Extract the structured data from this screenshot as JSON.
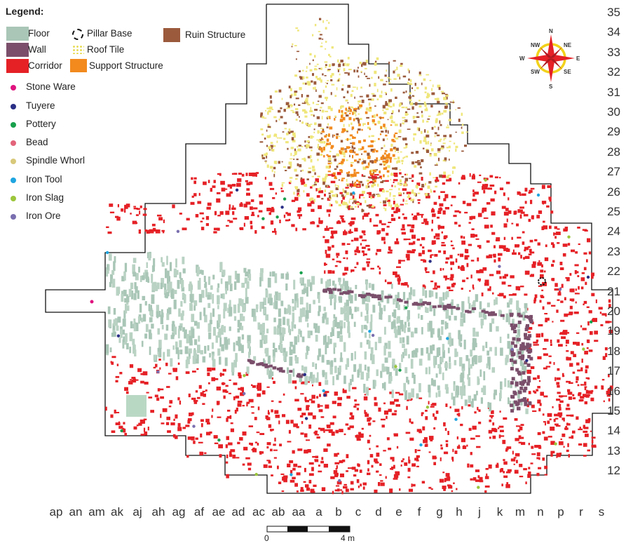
{
  "legend": {
    "title": "Legend:",
    "items": [
      {
        "label": "Floor",
        "color": "#a9c6b6"
      },
      {
        "label": "Wall",
        "color": "#7b4f6b"
      },
      {
        "label": "Corridor",
        "color": "#e52126"
      },
      {
        "label": "Pillar Base",
        "color": "#111111"
      },
      {
        "label": "Roof Tile",
        "color": "#efe67a"
      },
      {
        "label": "Support Structure",
        "color": "#f28a1e"
      },
      {
        "label": "Ruin Structure",
        "color": "#9b5a3c"
      },
      {
        "label": "Stone Ware",
        "color": "#e0137f"
      },
      {
        "label": "Tuyere",
        "color": "#2a2f86"
      },
      {
        "label": "Pottery",
        "color": "#17a04c"
      },
      {
        "label": "Bead",
        "color": "#e2647a"
      },
      {
        "label": "Spindle Whorl",
        "color": "#d8c97a"
      },
      {
        "label": "Iron Tool",
        "color": "#1fa5e0"
      },
      {
        "label": "Iron Slag",
        "color": "#9cc63b"
      },
      {
        "label": "Iron Ore",
        "color": "#7a6fb0"
      }
    ]
  },
  "grid": {
    "rows": [
      "35",
      "34",
      "33",
      "32",
      "31",
      "30",
      "29",
      "28",
      "27",
      "26",
      "25",
      "24",
      "23",
      "22",
      "21",
      "20",
      "19",
      "18",
      "17",
      "16",
      "15",
      "14",
      "13",
      "12"
    ],
    "columns": [
      "ap",
      "an",
      "am",
      "ak",
      "aj",
      "ah",
      "ag",
      "af",
      "ae",
      "ad",
      "ac",
      "ab",
      "aa",
      "a",
      "b",
      "c",
      "d",
      "e",
      "f",
      "g",
      "h",
      "j",
      "k",
      "m",
      "n",
      "p",
      "r",
      "s"
    ]
  },
  "compass": {
    "n": "N",
    "s": "S",
    "e": "E",
    "w": "W",
    "ne": "NE",
    "nw": "NW",
    "se": "SE",
    "sw": "SW"
  },
  "scale_bar": {
    "start": "0",
    "end": "4 m"
  }
}
